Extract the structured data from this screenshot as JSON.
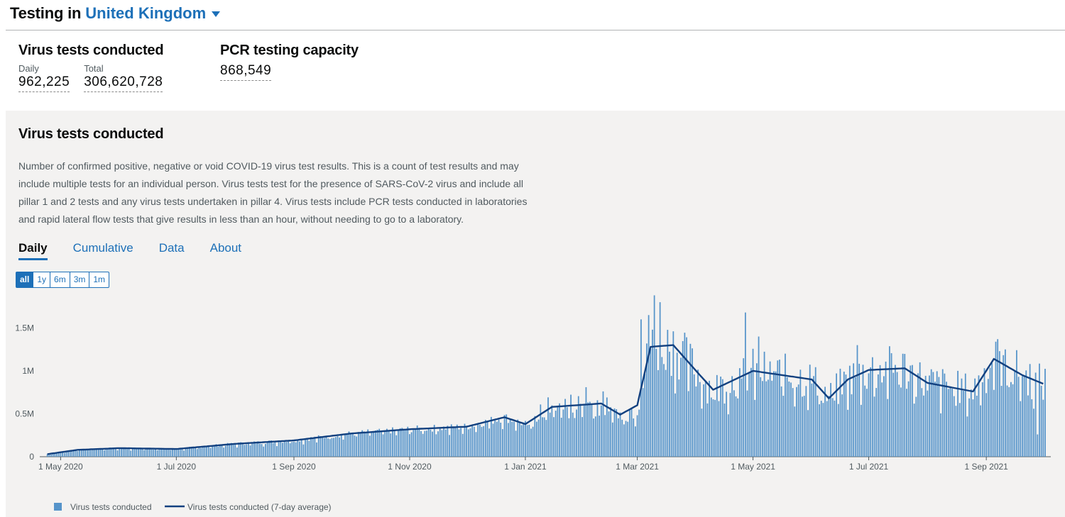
{
  "header": {
    "title_prefix": "Testing in",
    "area_name": "United Kingdom"
  },
  "headline": {
    "virus_tests": {
      "title": "Virus tests conducted",
      "daily_label": "Daily",
      "daily_value": "962,225",
      "total_label": "Total",
      "total_value": "306,620,728"
    },
    "pcr_capacity": {
      "title": "PCR testing capacity",
      "value": "868,549"
    }
  },
  "card": {
    "title": "Virus tests conducted",
    "description": "Number of confirmed positive, negative or void COVID-19 virus test results. This is a count of test results and may include multiple tests for an individual person. Virus tests test for the presence of SARS-CoV-2 virus and include all pillar 1 and 2 tests and any virus tests undertaken in pillar 4. Virus tests include PCR tests conducted in laboratories and rapid lateral flow tests that give results in less than an hour, without needing to go to a laboratory.",
    "tabs": [
      "Daily",
      "Cumulative",
      "Data",
      "About"
    ],
    "active_tab": "Daily",
    "ranges": [
      "all",
      "1y",
      "6m",
      "3m",
      "1m"
    ],
    "active_range": "all"
  },
  "colors": {
    "bar": "#5694ca",
    "avg_line": "#12407f",
    "link": "#1d70b8"
  },
  "chart_data": {
    "type": "bar",
    "title": "Virus tests conducted",
    "ylim": [
      0,
      1900000
    ],
    "y_ticks": [
      0,
      500000,
      1000000,
      1500000
    ],
    "y_tick_labels": [
      "0",
      "0.5M",
      "1M",
      "1.5M"
    ],
    "x_start": "2020-04-20",
    "x_end": "2021-10-05",
    "x_ticks": [
      "2020-05-01",
      "2020-07-01",
      "2020-09-01",
      "2020-11-01",
      "2021-01-01",
      "2021-03-01",
      "2021-05-01",
      "2021-07-01",
      "2021-09-01"
    ],
    "x_tick_labels": [
      "1 May 2020",
      "1 Jul 2020",
      "1 Sep 2020",
      "1 Nov 2020",
      "1 Jan 2021",
      "1 Mar 2021",
      "1 May 2021",
      "1 Jul 2021",
      "1 Sep 2021"
    ],
    "daily_series_name": "Virus tests conducted",
    "average_series_name": "Virus tests conducted (7-day average)",
    "average_keypoints": [
      [
        "2020-04-24",
        30000
      ],
      [
        "2020-05-10",
        80000
      ],
      [
        "2020-06-01",
        100000
      ],
      [
        "2020-07-01",
        90000
      ],
      [
        "2020-08-01",
        150000
      ],
      [
        "2020-09-01",
        190000
      ],
      [
        "2020-10-01",
        270000
      ],
      [
        "2020-11-01",
        320000
      ],
      [
        "2020-12-01",
        350000
      ],
      [
        "2020-12-21",
        460000
      ],
      [
        "2021-01-01",
        380000
      ],
      [
        "2021-01-15",
        580000
      ],
      [
        "2021-02-10",
        620000
      ],
      [
        "2021-02-20",
        490000
      ],
      [
        "2021-03-01",
        600000
      ],
      [
        "2021-03-08",
        1280000
      ],
      [
        "2021-03-20",
        1300000
      ],
      [
        "2021-04-01",
        1000000
      ],
      [
        "2021-04-10",
        780000
      ],
      [
        "2021-05-01",
        1000000
      ],
      [
        "2021-06-01",
        900000
      ],
      [
        "2021-06-10",
        680000
      ],
      [
        "2021-06-20",
        900000
      ],
      [
        "2021-07-01",
        1010000
      ],
      [
        "2021-07-20",
        1030000
      ],
      [
        "2021-08-01",
        860000
      ],
      [
        "2021-08-25",
        760000
      ],
      [
        "2021-09-05",
        1140000
      ],
      [
        "2021-09-20",
        950000
      ],
      [
        "2021-10-01",
        850000
      ]
    ],
    "daily_spikes": [
      [
        "2021-03-10",
        1880000
      ],
      [
        "2021-03-13",
        1800000
      ],
      [
        "2021-03-03",
        1600000
      ],
      [
        "2021-03-07",
        1650000
      ],
      [
        "2021-04-27",
        1680000
      ],
      [
        "2021-05-04",
        1400000
      ],
      [
        "2021-06-25",
        1300000
      ],
      [
        "2021-09-06",
        1340000
      ],
      [
        "2021-02-02",
        810000
      ],
      [
        "2021-09-28",
        260000
      ],
      [
        "2021-09-11",
        1250000
      ]
    ],
    "legend_position": "bottom-left"
  }
}
